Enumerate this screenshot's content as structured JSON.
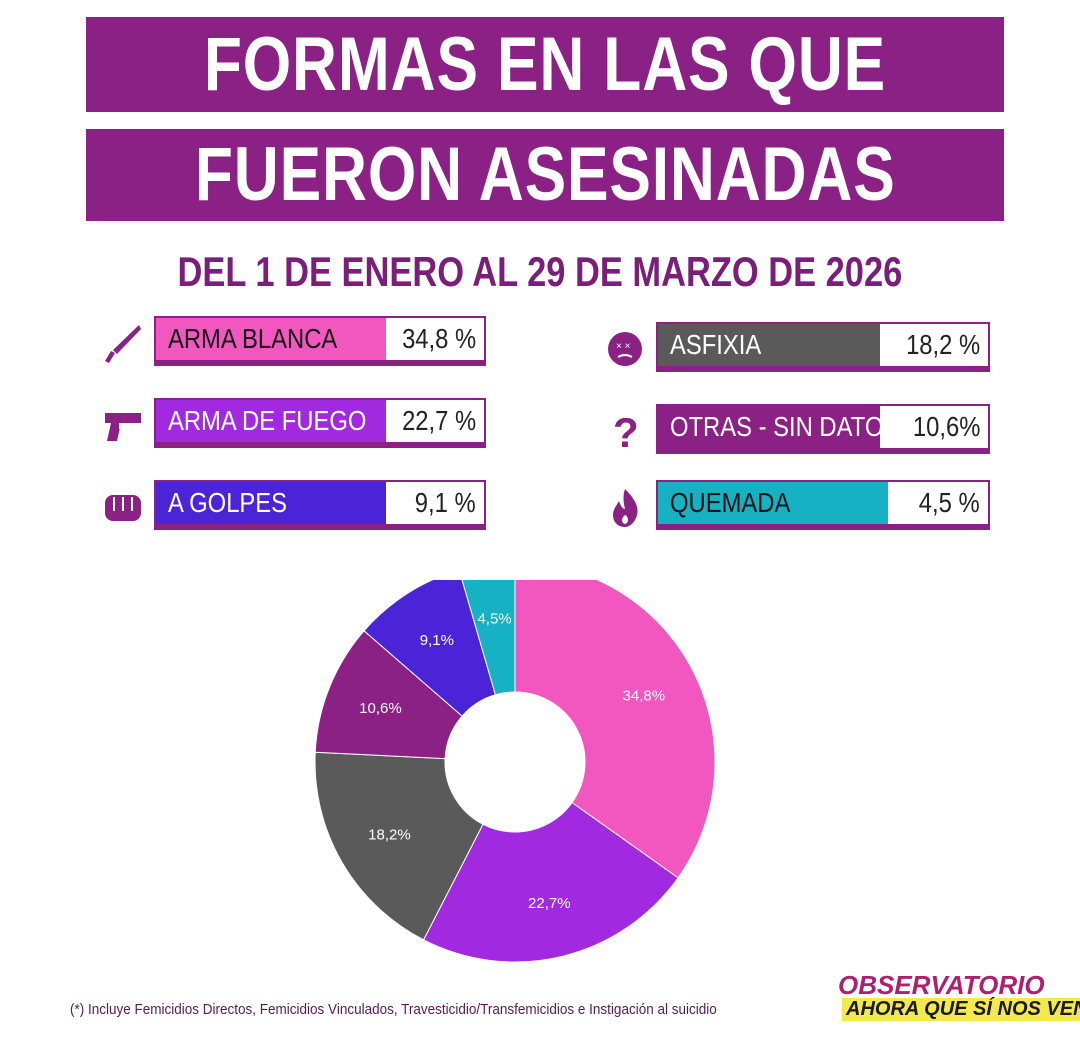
{
  "title": {
    "line1": "FORMAS EN LAS QUE",
    "line2": "FUERON ASESINADAS"
  },
  "subtitle": "DEL 1 DE ENERO AL 29 DE MARZO DE 2026",
  "legend": [
    {
      "label": "ARMA BLANCA",
      "pct": "34,8 %",
      "color": "#f257bf",
      "icon": "knife-icon"
    },
    {
      "label": "ARMA DE FUEGO",
      "pct": "22,7 %",
      "color": "#a12ae0",
      "icon": "gun-icon"
    },
    {
      "label": "A GOLPES",
      "pct": "9,1 %",
      "color": "#4b24d8",
      "icon": "fist-icon"
    },
    {
      "label": "ASFIXIA",
      "pct": "18,2 %",
      "color": "#5a5a5a",
      "icon": "dizzy-face-icon"
    },
    {
      "label": "OTRAS - SIN DATOS",
      "pct": "10,6%",
      "color": "#8b2085",
      "icon": "question-icon"
    },
    {
      "label": "QUEMADA",
      "pct": "4,5 %",
      "color": "#16b2c4",
      "icon": "flame-icon"
    }
  ],
  "chart_data": {
    "type": "pie",
    "donut": true,
    "categories": [
      "ARMA BLANCA",
      "ARMA DE FUEGO",
      "ASFIXIA",
      "OTRAS - SIN DATOS",
      "A GOLPES",
      "QUEMADA"
    ],
    "values": [
      34.8,
      22.7,
      18.2,
      10.6,
      9.1,
      4.5
    ],
    "labels": [
      "34,8%",
      "22,7%",
      "18,2%",
      "10,6%",
      "9,1%",
      "4,5%"
    ],
    "colors": [
      "#f257bf",
      "#a12ae0",
      "#5a5a5a",
      "#8b2085",
      "#4b24d8",
      "#16b2c4"
    ]
  },
  "footnote": "(*) Incluye Femicidios Directos, Femicidios Vinculados,  Travesticidio/Transfemicidios e Instigación al suicidio",
  "logo": {
    "line1": "OBSERVATORIO",
    "line2": "AHORA QUE SÍ NOS VEN"
  }
}
